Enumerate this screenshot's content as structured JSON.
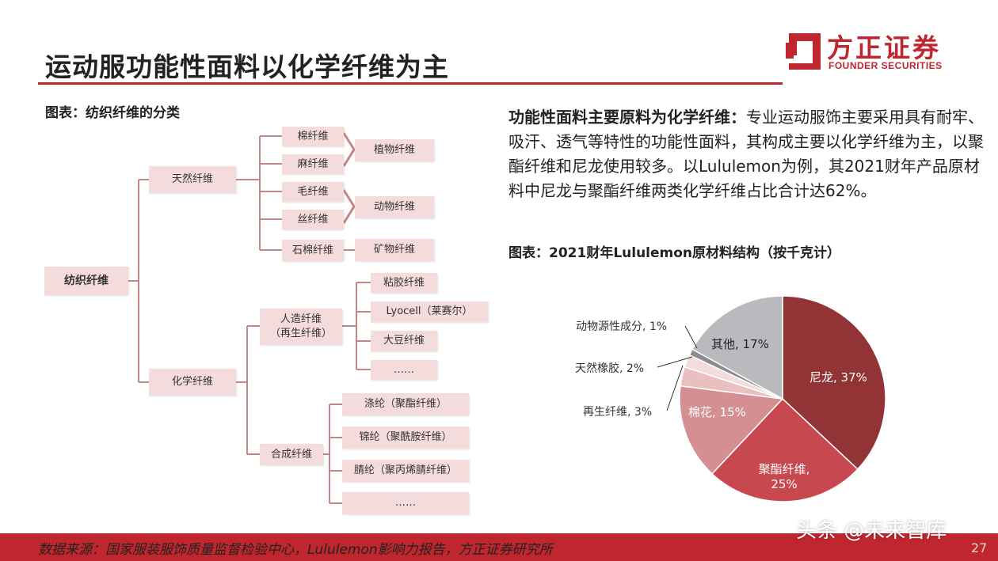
{
  "header": {
    "title": "运动服功能性面料以化学纤维为主",
    "logo_cn": "方正证券",
    "logo_en": "FOUNDER SECURITIES"
  },
  "left_panel": {
    "caption": "图表：纺织纤维的分类",
    "tree": {
      "root": "纺织纤维",
      "natural": "天然纤维",
      "natural_items": [
        "棉纤维",
        "麻纤维",
        "毛纤维",
        "丝纤维",
        "石棉纤维"
      ],
      "natural_groups": [
        "植物纤维",
        "动物纤维",
        "矿物纤维"
      ],
      "chemical": "化学纤维",
      "manmade": [
        "人造纤维",
        "（再生纤维）"
      ],
      "manmade_items": [
        "粘胶纤维",
        "Lyocell（莱赛尔）",
        "大豆纤维",
        "……"
      ],
      "synthetic": "合成纤维",
      "synthetic_items": [
        "涤纶（聚酯纤维）",
        "锦纶（聚酰胺纤维）",
        "腈纶（聚丙烯腈纤维）",
        "……"
      ]
    }
  },
  "right_panel": {
    "paragraph_lead": "功能性面料主要原料为化学纤维：",
    "paragraph_body": "专业运动服饰主要采用具有耐牢、吸汗、透气等特性的功能性面料，其构成主要以化学纤维为主，以聚酯纤维和尼龙使用较多。以Lululemon为例，其2021财年产品原材料中尼龙与聚酯纤维两类化学纤维占比合计达62%。",
    "chart_caption": "图表：2021财年Lululemon原材料结构（按千克计）"
  },
  "chart_data": {
    "type": "pie",
    "title": "",
    "slices": [
      {
        "label": "尼龙, 37%",
        "name": "尼龙",
        "value": 37,
        "color": "#923336"
      },
      {
        "label": "聚酯纤维,",
        "label2": "25%",
        "name": "聚酯纤维",
        "value": 25,
        "color": "#c7484e"
      },
      {
        "label": "棉花, 15%",
        "name": "棉花",
        "value": 15,
        "color": "#d58f92"
      },
      {
        "label": "再生纤维, 3%",
        "name": "再生纤维",
        "value": 3,
        "color": "#e9bfc0"
      },
      {
        "label": "天然橡胶, 2%",
        "name": "天然橡胶",
        "value": 2,
        "color": "#f3dcdc"
      },
      {
        "label": "动物源性成分, 1%",
        "name": "动物源性成分",
        "value": 1,
        "color": "#8b8b8e"
      },
      {
        "label": "其他, 17%",
        "name": "其他",
        "value": 17,
        "color": "#b9babd"
      }
    ],
    "start": "top, clockwise"
  },
  "footer": {
    "source": "数据来源：国家服装服饰质量监督检验中心，Lululemon影响力报告，方正证券研究所",
    "watermark": "头条 @未来智库",
    "page_number": "27"
  },
  "colors": {
    "accent": "#c0262d",
    "node_fill": "#f5dcdc",
    "connector": "#c48587"
  }
}
